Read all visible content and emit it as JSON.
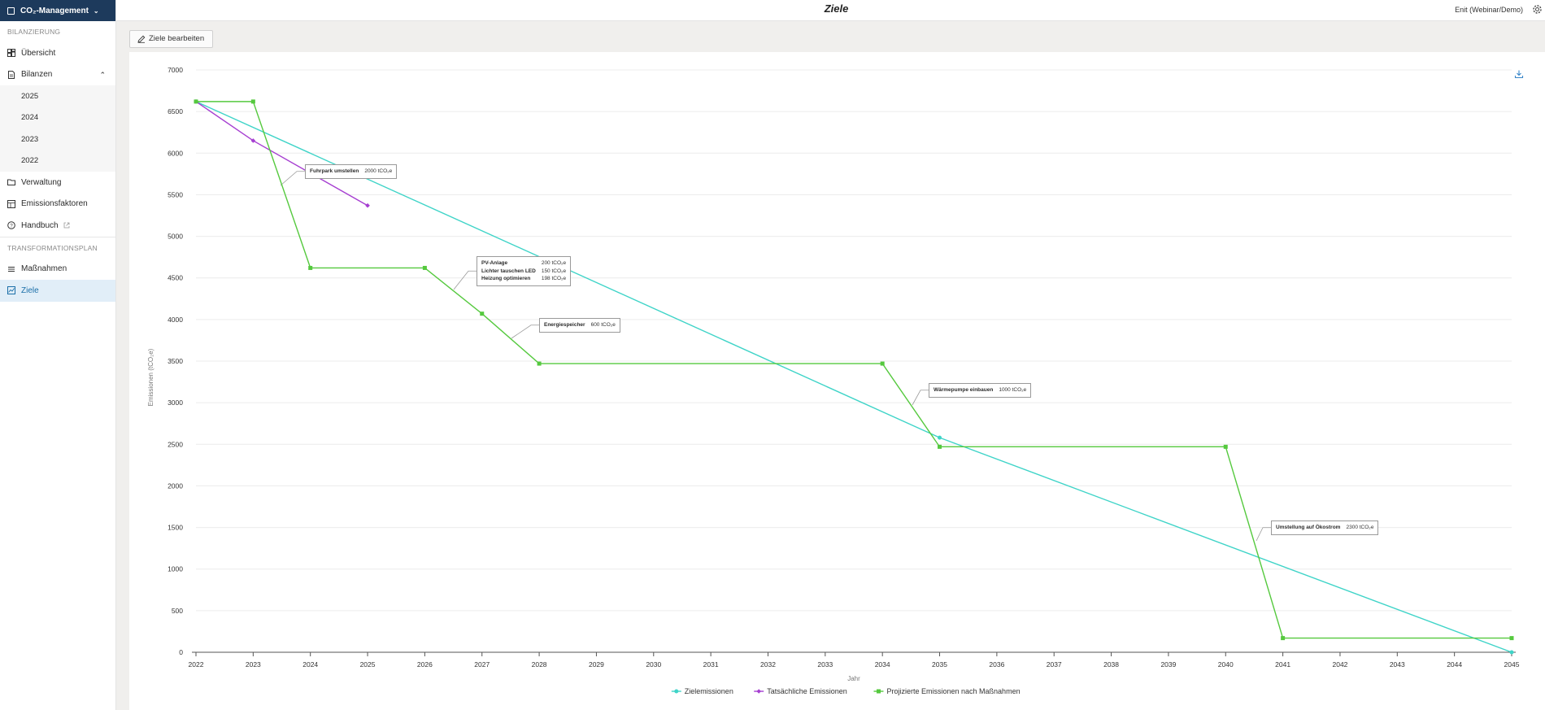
{
  "app": {
    "switcher_label": "CO₂-Management",
    "page_title": "Ziele",
    "user_label": "Enit (Webinar/Demo)"
  },
  "sidebar": {
    "section_bilanzierung": "BILANZIERUNG",
    "item_uebersicht": "Übersicht",
    "item_bilanzen": "Bilanzen",
    "bilanzen_years": [
      "2025",
      "2024",
      "2023",
      "2022"
    ],
    "item_verwaltung": "Verwaltung",
    "item_emissionsfaktoren": "Emissionsfaktoren",
    "item_handbuch": "Handbuch",
    "section_transformation": "TRANSFORMATIONSPLAN",
    "item_massnahmen": "Maßnahmen",
    "item_ziele": "Ziele"
  },
  "toolbar": {
    "edit_label": "Ziele bearbeiten"
  },
  "chart_data": {
    "type": "line",
    "xlabel": "Jahr",
    "ylabel": "Emissionen (tCO₂e)",
    "ylim": [
      0,
      7000
    ],
    "yticks": [
      0,
      500,
      1000,
      1500,
      2000,
      2500,
      3000,
      3500,
      4000,
      4500,
      5000,
      5500,
      6000,
      6500,
      7000
    ],
    "x_categories": [
      "2022",
      "2023",
      "2024",
      "2025",
      "2026",
      "2027",
      "2028",
      "2029",
      "2030",
      "2031",
      "2032",
      "2033",
      "2034",
      "2035",
      "2036",
      "2037",
      "2038",
      "2039",
      "2040",
      "2041",
      "2042",
      "2043",
      "2044",
      "2045"
    ],
    "grid": true,
    "legend_position": "bottom",
    "series": [
      {
        "name": "Zielemissionen",
        "color": "#3fd4c8",
        "marker": "circle",
        "points": [
          [
            2022,
            6620
          ],
          [
            2035,
            2580
          ],
          [
            2045,
            0
          ]
        ]
      },
      {
        "name": "Tatsächliche Emissionen",
        "color": "#a63fd1",
        "marker": "diamond",
        "points": [
          [
            2022,
            6620
          ],
          [
            2023,
            6150
          ],
          [
            2024,
            5760
          ],
          [
            2025,
            5370
          ]
        ]
      },
      {
        "name": "Projizierte Emissionen nach Maßnahmen",
        "color": "#55c93e",
        "marker": "square",
        "points": [
          [
            2022,
            6620
          ],
          [
            2023,
            6620
          ],
          [
            2024,
            4620
          ],
          [
            2026,
            4620
          ],
          [
            2027,
            4070
          ],
          [
            2028,
            3470
          ],
          [
            2034,
            3470
          ],
          [
            2035,
            2470
          ],
          [
            2040,
            2470
          ],
          [
            2041,
            170
          ],
          [
            2045,
            170
          ]
        ]
      }
    ],
    "annotations": [
      {
        "items": [
          {
            "name": "Fuhrpark umstellen",
            "value": "2000 tCO₂e"
          }
        ]
      },
      {
        "items": [
          {
            "name": "PV-Anlage",
            "value": "200 tCO₂e"
          },
          {
            "name": "Lichter tauschen LED",
            "value": "150 tCO₂e"
          },
          {
            "name": "Heizung optimieren",
            "value": "198 tCO₂e"
          }
        ]
      },
      {
        "items": [
          {
            "name": "Energiespeicher",
            "value": "600 tCO₂e"
          }
        ]
      },
      {
        "items": [
          {
            "name": "Wärmepumpe einbauen",
            "value": "1000 tCO₂e"
          }
        ]
      },
      {
        "items": [
          {
            "name": "Umstellung auf Ökostrom",
            "value": "2300 tCO₂e"
          }
        ]
      }
    ]
  }
}
